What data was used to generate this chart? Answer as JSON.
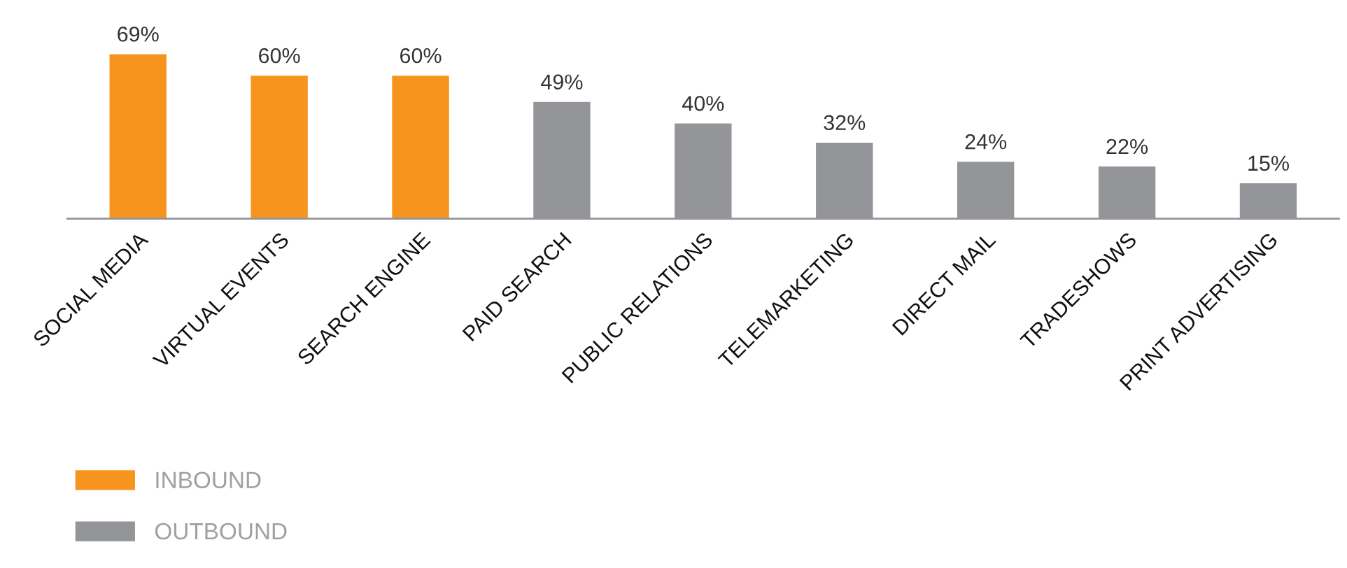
{
  "chart_data": {
    "type": "bar",
    "categories": [
      "SOCIAL MEDIA",
      "VIRTUAL EVENTS",
      "SEARCH ENGINE",
      "PAID SEARCH",
      "PUBLIC RELATIONS",
      "TELEMARKETING",
      "DIRECT MAIL",
      "TRADESHOWS",
      "PRINT ADVERTISING"
    ],
    "series": [
      {
        "name": "INBOUND",
        "color": "#f7941d",
        "values": [
          69,
          60,
          60,
          null,
          null,
          null,
          null,
          null,
          null
        ],
        "value_labels": [
          "69%",
          "60%",
          "60%",
          null,
          null,
          null,
          null,
          null,
          null
        ]
      },
      {
        "name": "OUTBOUND",
        "color": "#939598",
        "values": [
          null,
          null,
          null,
          49,
          40,
          32,
          24,
          22,
          15
        ],
        "value_labels": [
          null,
          null,
          null,
          "49%",
          "40%",
          "32%",
          "24%",
          "22%",
          "15%"
        ]
      }
    ],
    "legend": "bottom left",
    "grid": false
  }
}
